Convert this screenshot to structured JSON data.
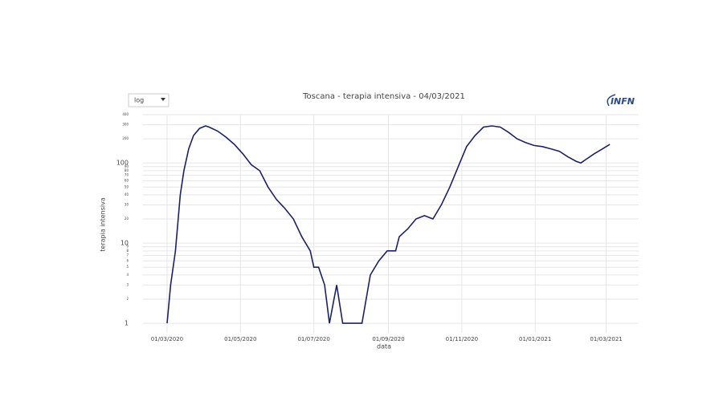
{
  "chart_data": {
    "type": "line",
    "title": "Toscana - terapia intensiva - 04/03/2021",
    "x_label": "data",
    "y_label": "terapia intensiva",
    "scale_selector": "log",
    "logo": "INFN",
    "y_scale": "log",
    "grid": true,
    "xlim": [
      "2020-02-10",
      "2021-03-28"
    ],
    "ylim": [
      0.76,
      400
    ],
    "xticks": [
      {
        "value": "2020-03-01",
        "label": "01/03/2020"
      },
      {
        "value": "2020-05-01",
        "label": "01/05/2020"
      },
      {
        "value": "2020-07-01",
        "label": "01/07/2020"
      },
      {
        "value": "2020-09-01",
        "label": "01/09/2020"
      },
      {
        "value": "2020-11-01",
        "label": "01/11/2020"
      },
      {
        "value": "2021-01-01",
        "label": "01/01/2021"
      },
      {
        "value": "2021-03-01",
        "label": "01/03/2021"
      }
    ],
    "yticks": [
      1,
      2,
      3,
      4,
      5,
      6,
      7,
      8,
      9,
      10,
      20,
      30,
      40,
      50,
      60,
      70,
      80,
      90,
      100,
      200,
      300,
      400
    ],
    "series": [
      {
        "name": "terapia intensiva",
        "color": "#1c2163",
        "x": [
          "2020-03-01",
          "2020-03-04",
          "2020-03-08",
          "2020-03-12",
          "2020-03-15",
          "2020-03-19",
          "2020-03-23",
          "2020-03-28",
          "2020-04-02",
          "2020-04-05",
          "2020-04-12",
          "2020-04-19",
          "2020-04-26",
          "2020-05-03",
          "2020-05-10",
          "2020-05-17",
          "2020-05-24",
          "2020-05-31",
          "2020-06-07",
          "2020-06-14",
          "2020-06-21",
          "2020-06-28",
          "2020-07-01",
          "2020-07-05",
          "2020-07-10",
          "2020-07-14",
          "2020-07-20",
          "2020-07-25",
          "2020-08-01",
          "2020-08-10",
          "2020-08-17",
          "2020-08-24",
          "2020-08-31",
          "2020-09-07",
          "2020-09-10",
          "2020-09-17",
          "2020-09-24",
          "2020-10-01",
          "2020-10-08",
          "2020-10-15",
          "2020-10-22",
          "2020-10-29",
          "2020-11-05",
          "2020-11-12",
          "2020-11-19",
          "2020-11-26",
          "2020-12-03",
          "2020-12-10",
          "2020-12-17",
          "2020-12-24",
          "2020-12-31",
          "2021-01-07",
          "2021-01-14",
          "2021-01-21",
          "2021-01-28",
          "2021-02-04",
          "2021-02-08",
          "2021-02-12",
          "2021-02-19",
          "2021-02-26",
          "2021-03-04"
        ],
        "values": [
          1,
          3,
          8,
          40,
          80,
          150,
          220,
          270,
          290,
          280,
          250,
          210,
          170,
          130,
          95,
          80,
          50,
          35,
          27,
          20,
          12,
          8,
          5,
          5,
          3,
          1,
          3,
          1,
          1,
          1,
          4,
          6,
          8,
          8,
          12,
          15,
          20,
          22,
          20,
          30,
          50,
          90,
          160,
          220,
          280,
          290,
          280,
          240,
          200,
          180,
          165,
          160,
          150,
          140,
          120,
          105,
          100,
          110,
          130,
          150,
          170
        ]
      }
    ]
  }
}
